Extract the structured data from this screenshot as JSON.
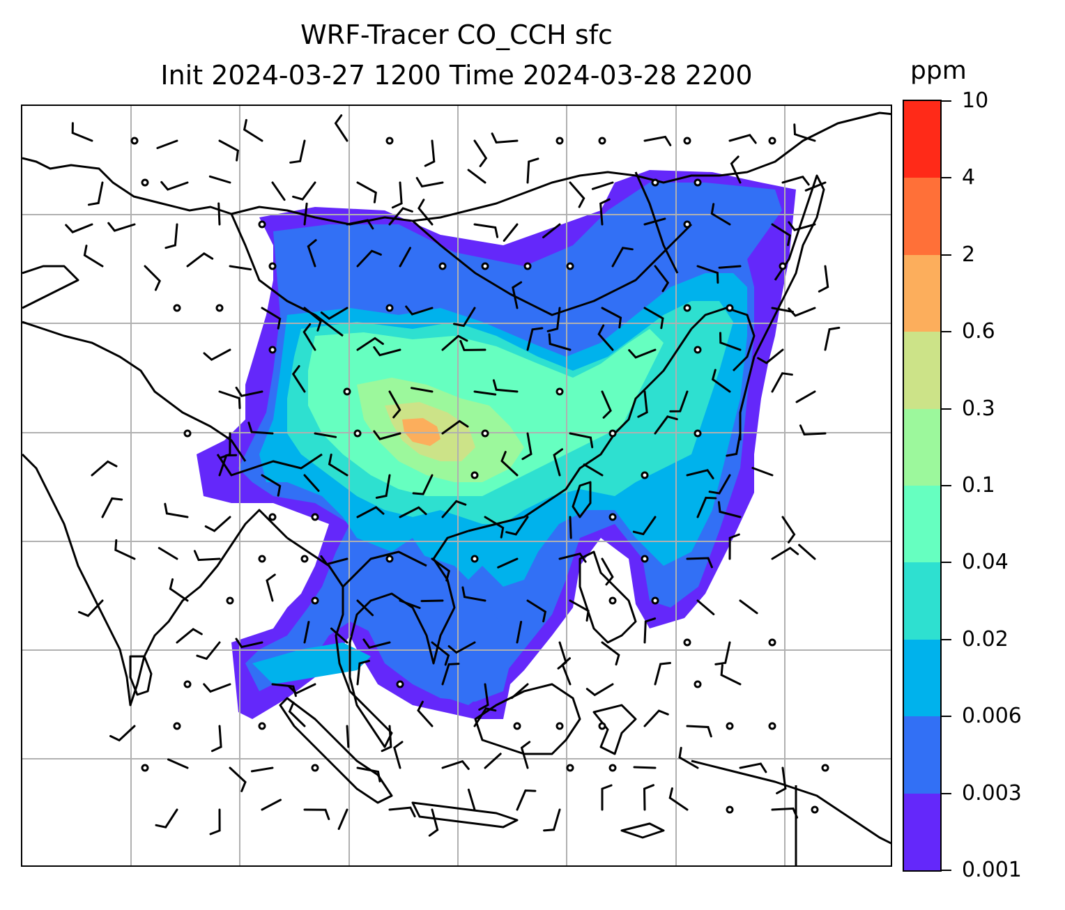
{
  "title": {
    "line1": "WRF-Tracer CO_CCH sfc",
    "line2": "Init 2024-03-27 1200 Time 2024-03-28 2200"
  },
  "colorbar": {
    "unit": "ppm",
    "levels": [
      "0.001",
      "0.003",
      "0.006",
      "0.02",
      "0.04",
      "0.1",
      "0.3",
      "0.6",
      "2",
      "4",
      "10"
    ],
    "colors": [
      "#6428fa",
      "#3270f5",
      "#00b2ec",
      "#2ee0d0",
      "#66ffc0",
      "#9cf89c",
      "#cce388",
      "#fcae5c",
      "#ff7038",
      "#ff2a18"
    ]
  },
  "map": {
    "gridlines": true,
    "fill_color_low": "#6428fa",
    "wind_barb_color": "#000000",
    "coastline_color": "#000000"
  }
}
